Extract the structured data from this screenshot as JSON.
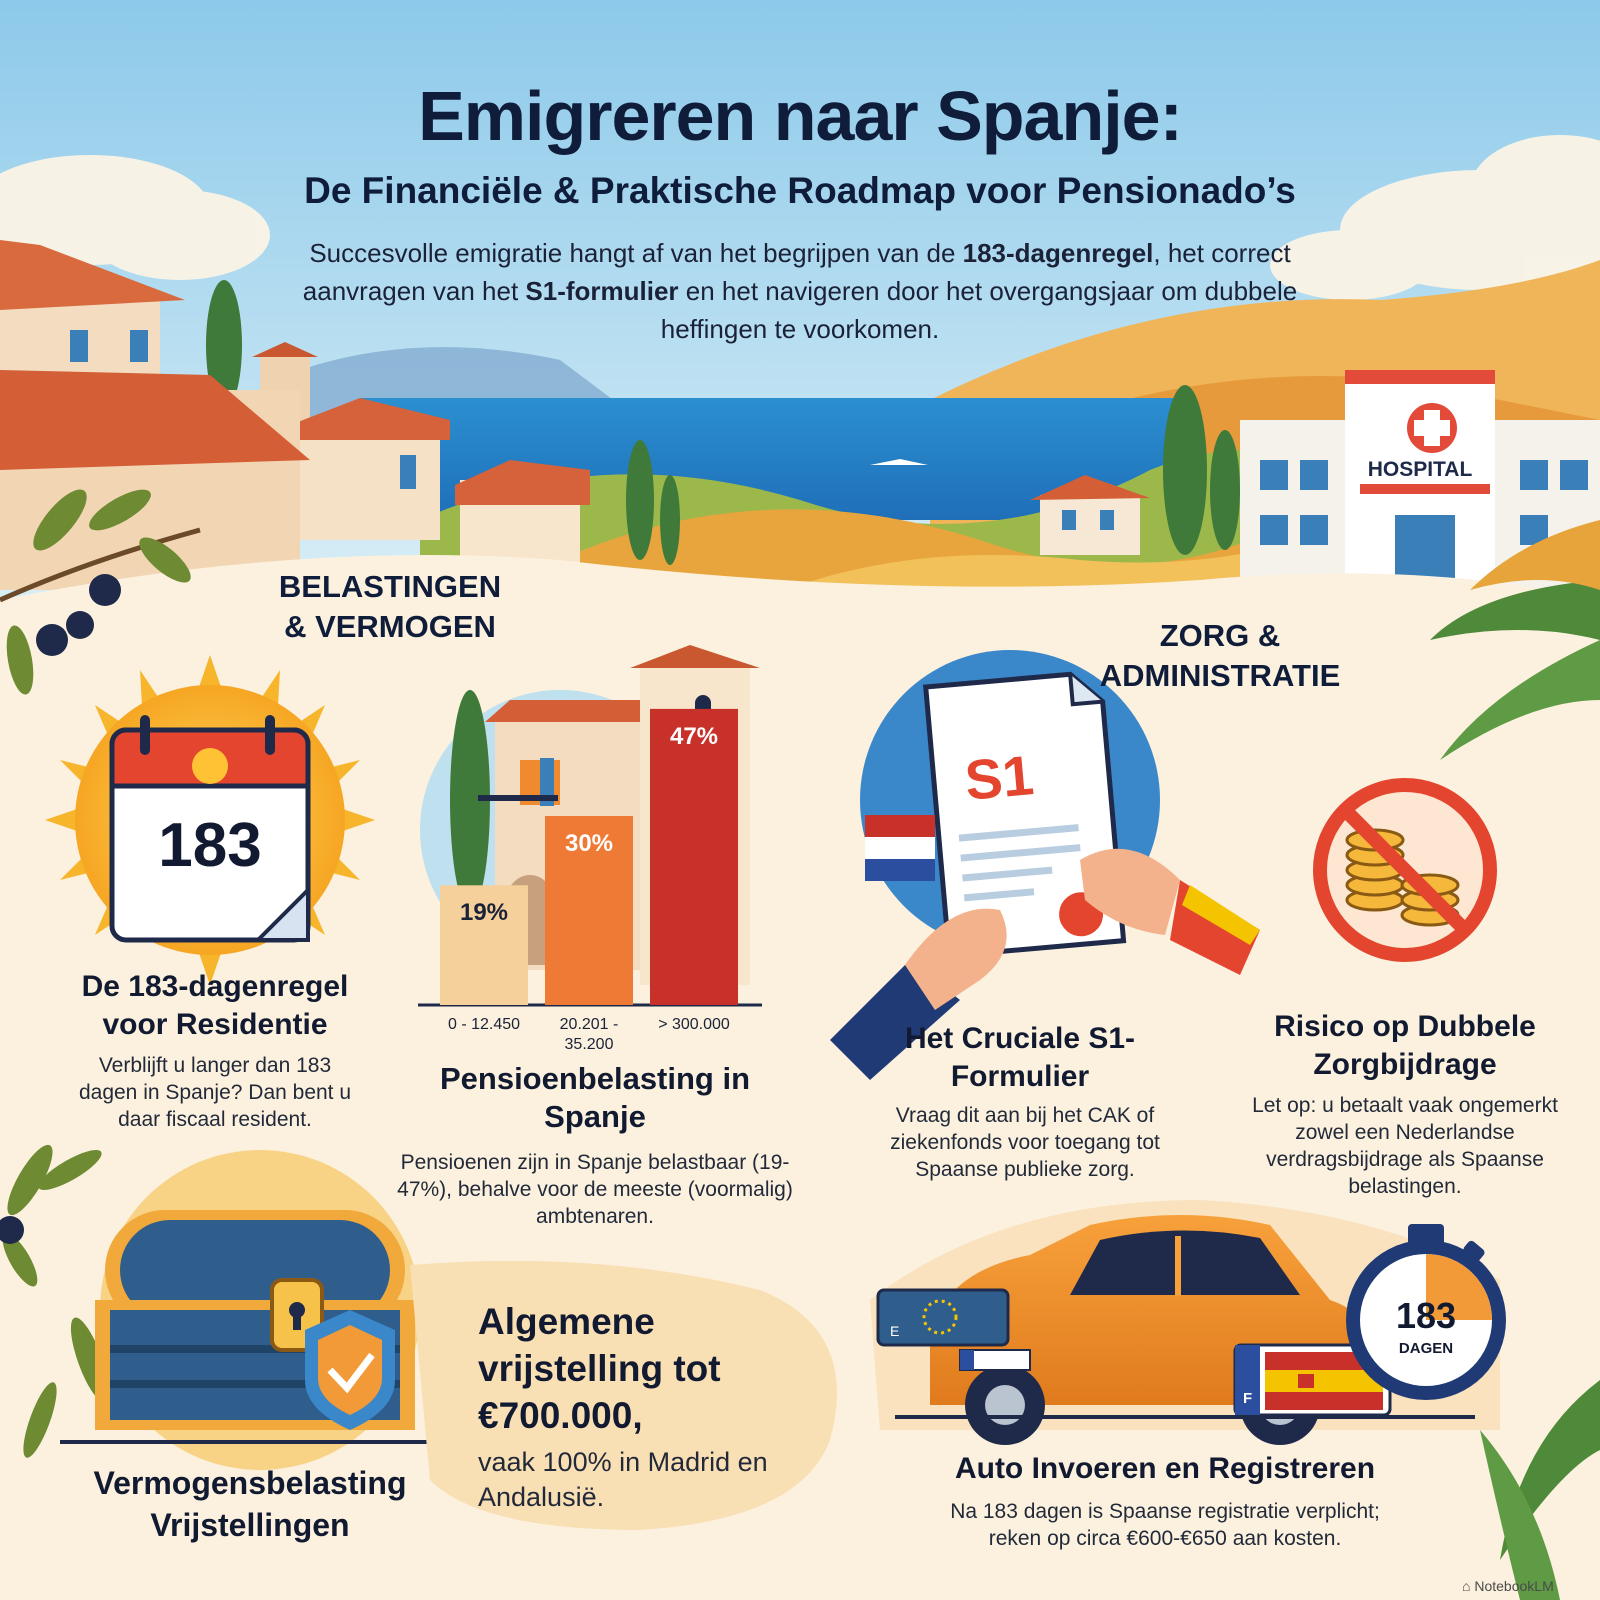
{
  "header": {
    "title": "Emigreren naar Spanje:",
    "subtitle": "De Financiële & Praktische Roadmap voor Pensionado’s",
    "intro": {
      "part1": "Succesvolle emigratie hangt af van het begrijpen van de ",
      "bold1": "183-dagenregel",
      "part2": ", het correct aanvragen van het ",
      "bold2": "S1-formulier",
      "part3": " en het navigeren door het overgangsjaar om dubbele heffingen te voorkomen."
    }
  },
  "scene": {
    "hospital_sign": "HOSPITAL"
  },
  "sections": {
    "left": "BELASTINGEN\n& VERMOGEN",
    "right": "ZORG &\nADMINISTRATIE"
  },
  "cards": {
    "residency": {
      "calendar_number": "183",
      "title": "De 183-dagenregel voor Residentie",
      "text": "Verblijft u langer dan 183 dagen in Spanje? Dan bent u daar fiscaal resident."
    },
    "pension": {
      "title": "Pensioenbelasting in Spanje",
      "text": "Pensioenen zijn in Spanje belastbaar (19-47%), behalve voor de meeste (voormalig) ambtenaren."
    },
    "s1": {
      "form_label": "S1",
      "title": "Het Cruciale S1-Formulier",
      "text": "Vraag dit aan bij het CAK of ziekenfonds voor toegang tot Spaanse publieke zorg."
    },
    "double": {
      "title": "Risico op Dubbele Zorgbijdrage",
      "text": "Let op: u betaalt vaak ongemerkt zowel een Nederlandse verdragsbijdrage als Spaanse belastingen."
    },
    "wealth": {
      "title": "Vermogensbelasting Vrijstellingen",
      "claim": "Algemene vrijstelling tot €700.000,",
      "claim_sub": "vaak 100% in Madrid en Andalusië."
    },
    "car": {
      "title": "Auto Invoeren en Registreren",
      "text": "Na 183 dagen is Spaanse registratie verplicht; reken op circa €600-€650 aan kosten.",
      "timer_number": "183",
      "timer_unit": "DAGEN",
      "plate_eu_letter": "E",
      "plate_es_letter": "F"
    }
  },
  "chart_data": {
    "type": "bar",
    "categories": [
      "0 - 12.450",
      "20.201 -\n35.200",
      "> 300.000"
    ],
    "values": [
      19,
      30,
      47
    ],
    "data_labels": [
      "19%",
      "30%",
      "47%"
    ],
    "colors": [
      "#f6d09a",
      "#ef7a35",
      "#c8312a"
    ],
    "title": "",
    "xlabel": "",
    "ylabel": "",
    "ylim": [
      0,
      50
    ]
  },
  "footer": {
    "brand": "NotebookLM"
  }
}
